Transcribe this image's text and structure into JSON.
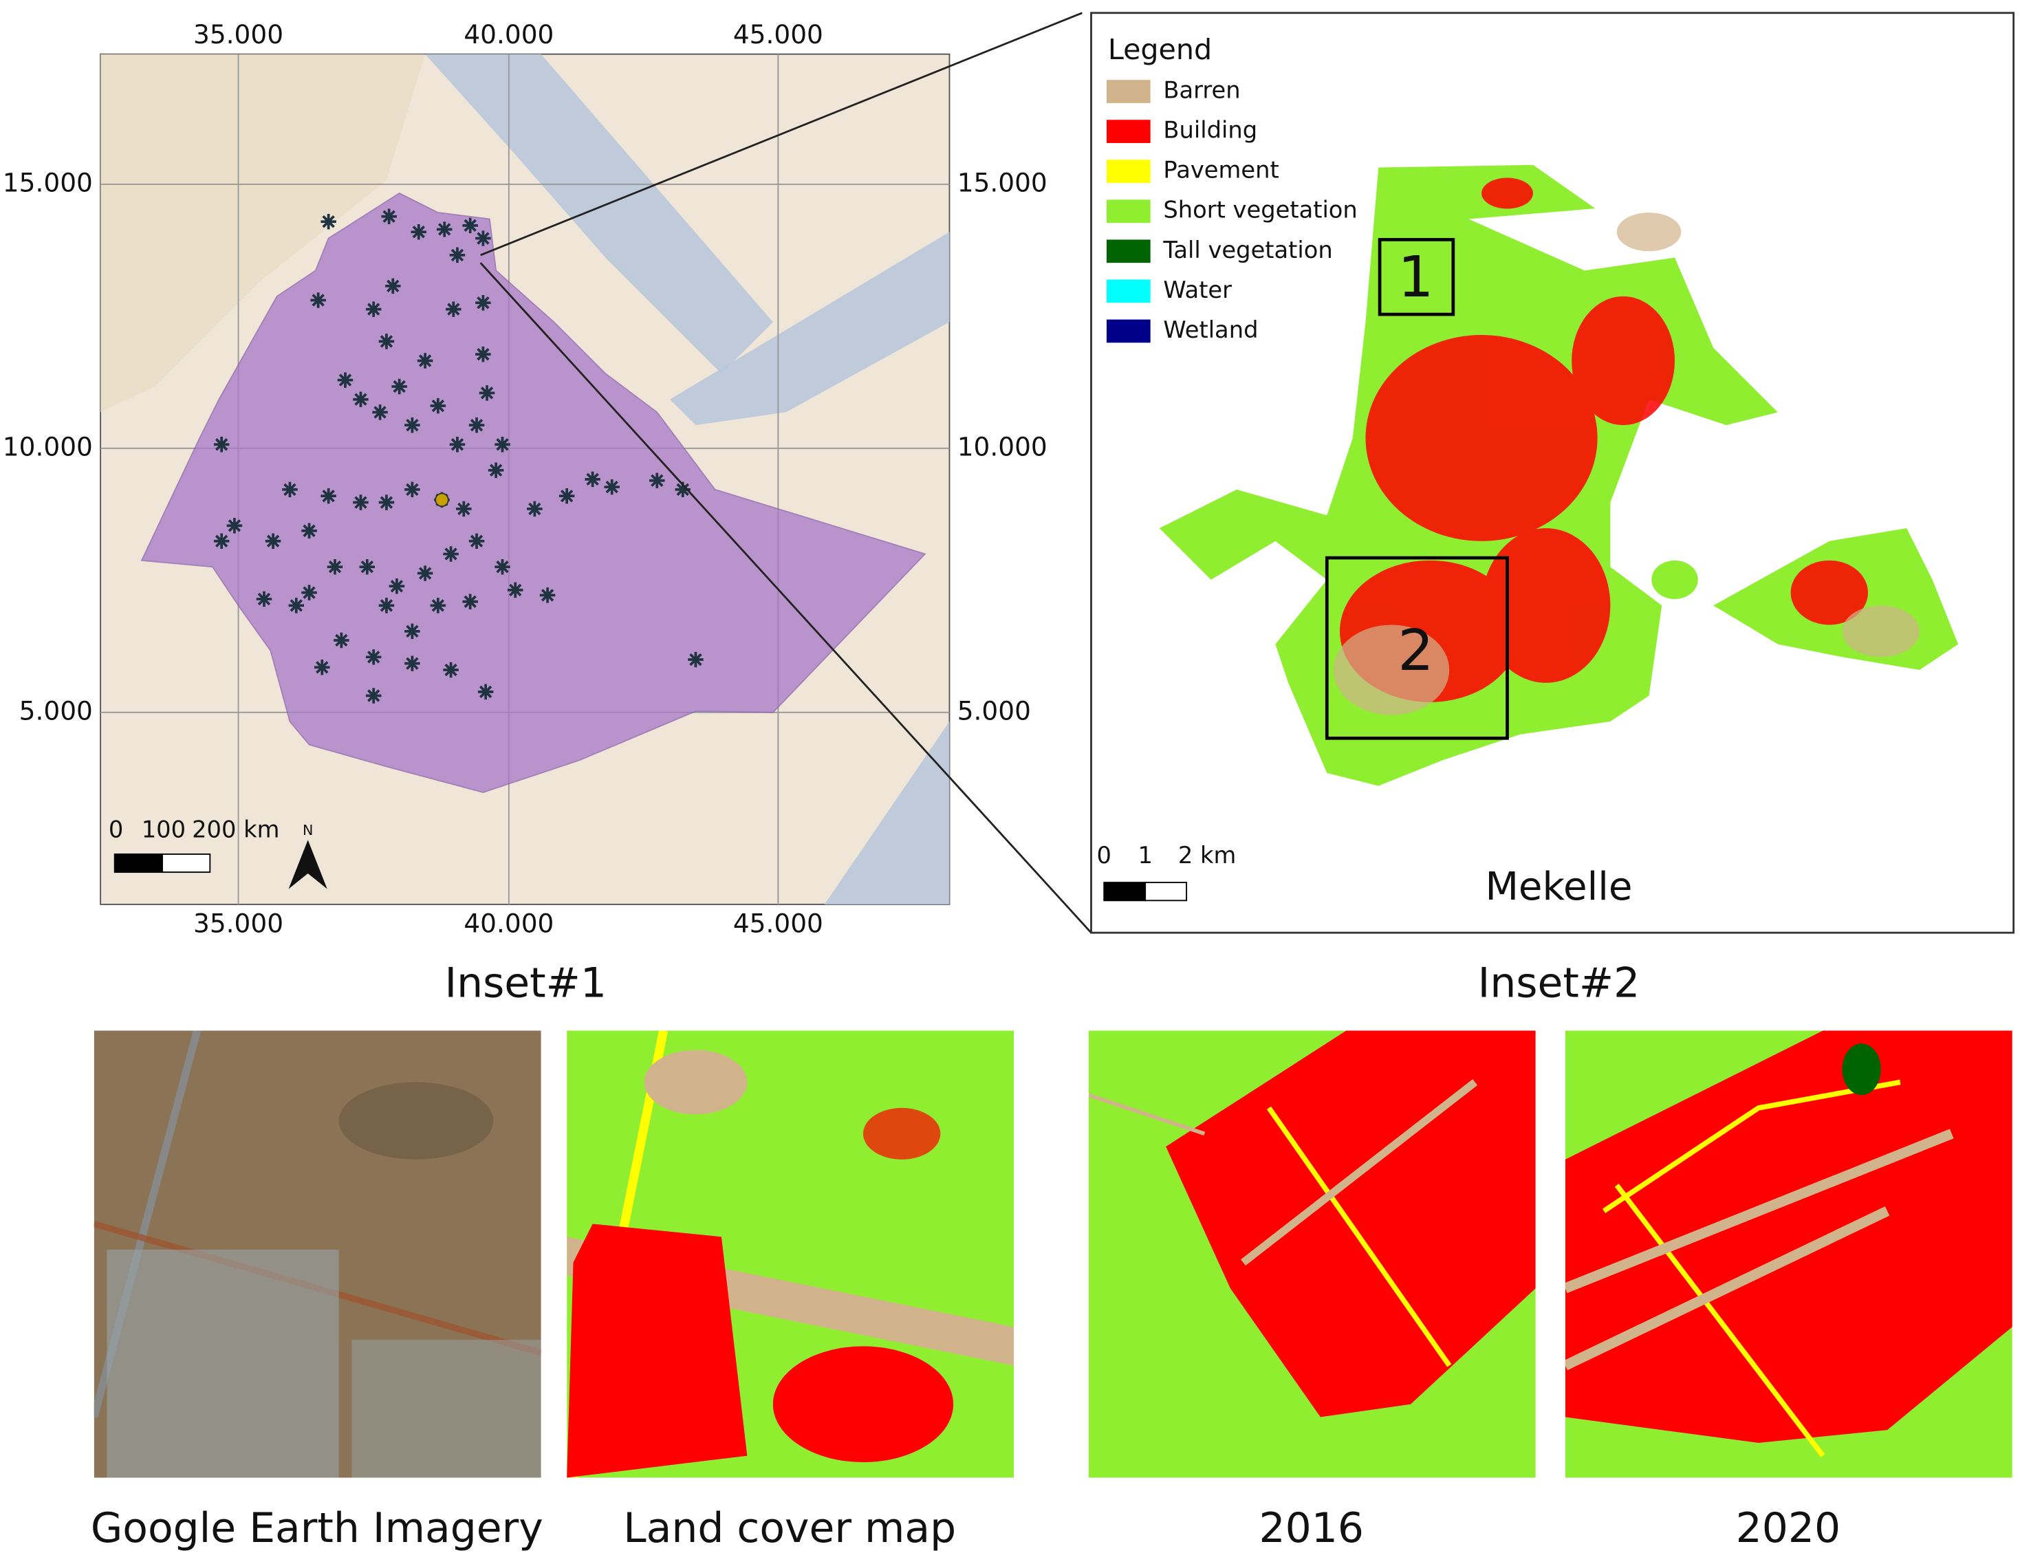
{
  "overview_map": {
    "top_ticks": [
      "35.000",
      "40.000",
      "45.000"
    ],
    "bottom_ticks": [
      "35.000",
      "40.000",
      "45.000"
    ],
    "left_ticks": [
      "15.000",
      "10.000",
      "5.000"
    ],
    "right_ticks": [
      "15.000",
      "10.000",
      "5.000"
    ],
    "scale_bar": [
      "0",
      "100",
      "200 km"
    ],
    "north": "N"
  },
  "city_map": {
    "legend": {
      "title": "Legend",
      "items": [
        {
          "label": "Barren",
          "color": "#d2b48c"
        },
        {
          "label": "Building",
          "color": "#ff0000"
        },
        {
          "label": "Pavement",
          "color": "#ffff00"
        },
        {
          "label": "Short vegetation",
          "color": "#90ee30"
        },
        {
          "label": "Tall vegetation",
          "color": "#006400"
        },
        {
          "label": "Water",
          "color": "#00ffff"
        },
        {
          "label": "Wetland",
          "color": "#00008b"
        }
      ]
    },
    "boxes": [
      "1",
      "2"
    ],
    "scale_bar": [
      "0",
      "1",
      "2 km"
    ],
    "name": "Mekelle"
  },
  "insets": [
    {
      "title": "Inset#1",
      "panels": [
        "Google Earth Imagery",
        "Land cover map"
      ]
    },
    {
      "title": "Inset#2",
      "panels": [
        "2016",
        "2020"
      ]
    }
  ]
}
